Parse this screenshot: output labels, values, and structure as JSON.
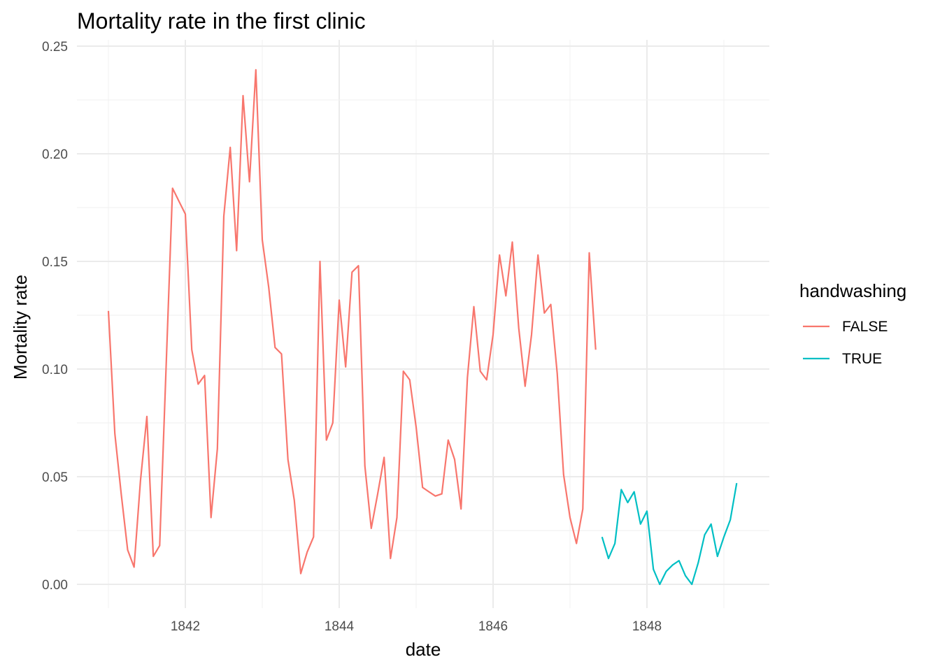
{
  "chart_data": {
    "type": "line",
    "title": "Mortality rate in the first clinic",
    "xlabel": "date",
    "ylabel": "Mortality rate",
    "x_ticks": [
      "1842",
      "1844",
      "1846",
      "1848"
    ],
    "y_ticks": [
      "0.00",
      "0.05",
      "0.10",
      "0.15",
      "0.20",
      "0.25"
    ],
    "ylim": [
      0,
      0.25
    ],
    "xlim": [
      "1840-12",
      "1849-05"
    ],
    "grid": true,
    "legend": {
      "title": "handwashing",
      "position": "right"
    },
    "series": [
      {
        "name": "FALSE",
        "color": "#F8766D",
        "points": [
          [
            "1841-01",
            0.127
          ],
          [
            "1841-02",
            0.07
          ],
          [
            "1841-03",
            0.042
          ],
          [
            "1841-04",
            0.016
          ],
          [
            "1841-05",
            0.008
          ],
          [
            "1841-06",
            0.048
          ],
          [
            "1841-07",
            0.078
          ],
          [
            "1841-08",
            0.013
          ],
          [
            "1841-09",
            0.018
          ],
          [
            "1841-10",
            0.101
          ],
          [
            "1841-11",
            0.184
          ],
          [
            "1841-12",
            0.178
          ],
          [
            "1842-01",
            0.172
          ],
          [
            "1842-02",
            0.109
          ],
          [
            "1842-03",
            0.093
          ],
          [
            "1842-04",
            0.097
          ],
          [
            "1842-05",
            0.031
          ],
          [
            "1842-06",
            0.063
          ],
          [
            "1842-07",
            0.171
          ],
          [
            "1842-08",
            0.203
          ],
          [
            "1842-09",
            0.155
          ],
          [
            "1842-10",
            0.227
          ],
          [
            "1842-11",
            0.187
          ],
          [
            "1842-12",
            0.239
          ],
          [
            "1843-01",
            0.16
          ],
          [
            "1843-02",
            0.138
          ],
          [
            "1843-03",
            0.11
          ],
          [
            "1843-04",
            0.107
          ],
          [
            "1843-05",
            0.058
          ],
          [
            "1843-06",
            0.039
          ],
          [
            "1843-07",
            0.005
          ],
          [
            "1843-08",
            0.015
          ],
          [
            "1843-09",
            0.022
          ],
          [
            "1843-10",
            0.15
          ],
          [
            "1843-11",
            0.067
          ],
          [
            "1843-12",
            0.075
          ],
          [
            "1844-01",
            0.132
          ],
          [
            "1844-02",
            0.101
          ],
          [
            "1844-03",
            0.145
          ],
          [
            "1844-04",
            0.148
          ],
          [
            "1844-05",
            0.055
          ],
          [
            "1844-06",
            0.026
          ],
          [
            "1844-07",
            0.042
          ],
          [
            "1844-08",
            0.059
          ],
          [
            "1844-09",
            0.012
          ],
          [
            "1844-10",
            0.031
          ],
          [
            "1844-11",
            0.099
          ],
          [
            "1844-12",
            0.095
          ],
          [
            "1845-01",
            0.073
          ],
          [
            "1845-02",
            0.045
          ],
          [
            "1845-03",
            0.043
          ],
          [
            "1845-04",
            0.041
          ],
          [
            "1845-05",
            0.042
          ],
          [
            "1845-06",
            0.067
          ],
          [
            "1845-07",
            0.058
          ],
          [
            "1845-08",
            0.035
          ],
          [
            "1845-09",
            0.096
          ],
          [
            "1845-10",
            0.129
          ],
          [
            "1845-11",
            0.099
          ],
          [
            "1845-12",
            0.095
          ],
          [
            "1846-01",
            0.116
          ],
          [
            "1846-02",
            0.153
          ],
          [
            "1846-03",
            0.134
          ],
          [
            "1846-04",
            0.159
          ],
          [
            "1846-05",
            0.119
          ],
          [
            "1846-06",
            0.092
          ],
          [
            "1846-07",
            0.116
          ],
          [
            "1846-08",
            0.153
          ],
          [
            "1846-09",
            0.126
          ],
          [
            "1846-10",
            0.13
          ],
          [
            "1846-11",
            0.098
          ],
          [
            "1846-12",
            0.051
          ],
          [
            "1847-01",
            0.031
          ],
          [
            "1847-02",
            0.019
          ],
          [
            "1847-03",
            0.035
          ],
          [
            "1847-04",
            0.154
          ],
          [
            "1847-05",
            0.109
          ]
        ]
      },
      {
        "name": "TRUE",
        "color": "#00BFC4",
        "points": [
          [
            "1847-06",
            0.022
          ],
          [
            "1847-07",
            0.012
          ],
          [
            "1847-08",
            0.019
          ],
          [
            "1847-09",
            0.044
          ],
          [
            "1847-10",
            0.038
          ],
          [
            "1847-11",
            0.043
          ],
          [
            "1847-12",
            0.028
          ],
          [
            "1848-01",
            0.034
          ],
          [
            "1848-02",
            0.007
          ],
          [
            "1848-03",
            0.0
          ],
          [
            "1848-04",
            0.006
          ],
          [
            "1848-05",
            0.009
          ],
          [
            "1848-06",
            0.011
          ],
          [
            "1848-07",
            0.004
          ],
          [
            "1848-08",
            0.0
          ],
          [
            "1848-09",
            0.01
          ],
          [
            "1848-10",
            0.023
          ],
          [
            "1848-11",
            0.028
          ],
          [
            "1848-12",
            0.013
          ],
          [
            "1849-01",
            0.022
          ],
          [
            "1849-02",
            0.03
          ],
          [
            "1849-03",
            0.047
          ]
        ]
      }
    ]
  }
}
